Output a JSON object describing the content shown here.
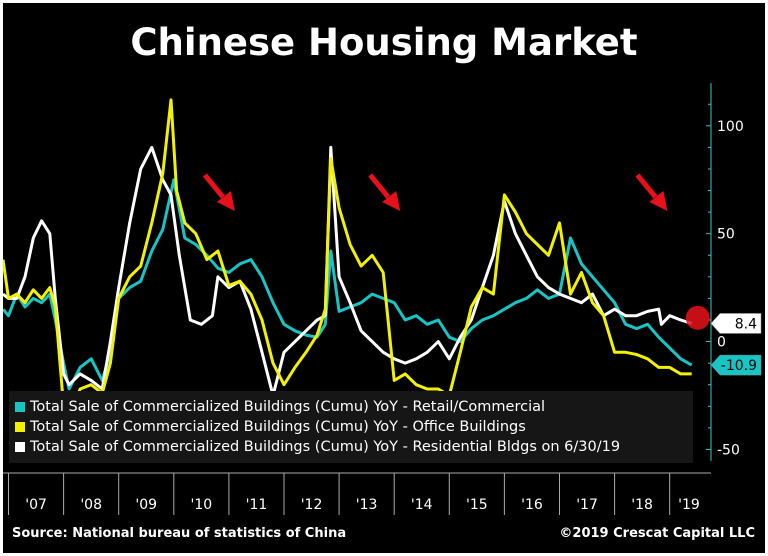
{
  "colors": {
    "retail": "#17c5c5",
    "office": "#f2f200",
    "residential": "#ffffff",
    "arrow": "#e8101a",
    "axis": "#3fc3c3",
    "background": "#000000"
  },
  "footer": {
    "source": "Source: National bureau of statistics of China",
    "copyright": "©2019 Crescat Capital LLC"
  },
  "chart_data": {
    "type": "line",
    "title": "Chinese Housing Market",
    "xlabel": "",
    "ylabel": "",
    "ylim": [
      -60,
      118
    ],
    "y_ticks": [
      100,
      50,
      0,
      -50
    ],
    "y_tick_labels": [
      "100",
      "50",
      "0",
      "-50"
    ],
    "x_categories": [
      "'07",
      "'08",
      "'09",
      "'10",
      "'11",
      "'12",
      "'13",
      "'14",
      "'15",
      "'16",
      "'17",
      "'18",
      "'19"
    ],
    "grid": false,
    "legend_position": "bottom-left",
    "annotations": {
      "arrows_at": [
        2011.0,
        2014.0,
        2018.85
      ],
      "highlight": {
        "x": 2019.4,
        "y": 11
      },
      "labels": [
        {
          "text": "8.4",
          "value": 8.4,
          "series": "Residential"
        },
        {
          "text": "-10.9",
          "value": -10.9,
          "series": "Retail/Commercial"
        }
      ]
    },
    "series": [
      {
        "name": "Total Sale of Commercialized Buildings (Cumu) YoY - Retail/Commercial",
        "color": "#17c5c5",
        "x": [
          2006.9,
          2007.0,
          2007.15,
          2007.3,
          2007.45,
          2007.6,
          2007.75,
          2007.85,
          2008.0,
          2008.1,
          2008.3,
          2008.5,
          2008.7,
          2008.85,
          2009.0,
          2009.2,
          2009.4,
          2009.6,
          2009.8,
          2010.0,
          2010.2,
          2010.4,
          2010.6,
          2010.8,
          2011.0,
          2011.2,
          2011.4,
          2011.6,
          2011.8,
          2012.0,
          2012.2,
          2012.4,
          2012.6,
          2012.75,
          2012.85,
          2013.0,
          2013.2,
          2013.4,
          2013.6,
          2013.8,
          2014.0,
          2014.2,
          2014.4,
          2014.6,
          2014.8,
          2015.0,
          2015.2,
          2015.4,
          2015.6,
          2015.8,
          2016.0,
          2016.2,
          2016.4,
          2016.6,
          2016.8,
          2017.0,
          2017.2,
          2017.4,
          2017.6,
          2017.8,
          2018.0,
          2018.2,
          2018.4,
          2018.6,
          2018.8,
          2019.0,
          2019.2,
          2019.4
        ],
        "values": [
          15,
          12,
          22,
          16,
          20,
          18,
          22,
          10,
          -10,
          -22,
          -12,
          -8,
          -18,
          -5,
          20,
          25,
          28,
          42,
          52,
          75,
          48,
          45,
          40,
          34,
          32,
          36,
          38,
          30,
          18,
          8,
          5,
          3,
          2,
          8,
          42,
          14,
          16,
          18,
          22,
          20,
          18,
          10,
          12,
          8,
          10,
          2,
          0,
          6,
          10,
          12,
          15,
          18,
          20,
          24,
          20,
          22,
          48,
          36,
          30,
          24,
          18,
          8,
          6,
          8,
          2,
          -3,
          -8,
          -10.9
        ]
      },
      {
        "name": "Total Sale of Commercialized Buildings (Cumu) YoY - Office Buildings",
        "color": "#f2f200",
        "x": [
          2006.9,
          2007.0,
          2007.15,
          2007.3,
          2007.45,
          2007.6,
          2007.75,
          2007.85,
          2008.0,
          2008.1,
          2008.3,
          2008.5,
          2008.7,
          2008.85,
          2009.0,
          2009.2,
          2009.4,
          2009.6,
          2009.8,
          2009.95,
          2010.05,
          2010.2,
          2010.4,
          2010.6,
          2010.8,
          2011.0,
          2011.2,
          2011.4,
          2011.6,
          2011.8,
          2012.0,
          2012.2,
          2012.4,
          2012.6,
          2012.75,
          2012.85,
          2013.0,
          2013.2,
          2013.4,
          2013.6,
          2013.8,
          2014.0,
          2014.2,
          2014.4,
          2014.6,
          2014.8,
          2015.0,
          2015.2,
          2015.4,
          2015.6,
          2015.8,
          2016.0,
          2016.2,
          2016.4,
          2016.6,
          2016.8,
          2017.0,
          2017.2,
          2017.4,
          2017.6,
          2017.8,
          2018.0,
          2018.2,
          2018.4,
          2018.6,
          2018.8,
          2019.0,
          2019.2,
          2019.4
        ],
        "values": [
          38,
          20,
          22,
          18,
          24,
          20,
          25,
          16,
          -30,
          -35,
          -22,
          -20,
          -24,
          -10,
          20,
          30,
          35,
          55,
          78,
          112,
          70,
          55,
          50,
          38,
          42,
          26,
          28,
          22,
          10,
          -10,
          -20,
          -12,
          -5,
          3,
          15,
          85,
          62,
          45,
          35,
          40,
          32,
          -18,
          -15,
          -20,
          -22,
          -22,
          -25,
          -5,
          16,
          25,
          22,
          68,
          60,
          50,
          45,
          40,
          55,
          22,
          32,
          18,
          12,
          -5,
          -5,
          -6,
          -8,
          -12,
          -12,
          -15,
          -15
        ]
      },
      {
        "name": "Total Sale of Commercialized Buildings (Cumu) YoY - Residential Bldgs on 6/30/19",
        "color": "#ffffff",
        "x": [
          2006.9,
          2007.0,
          2007.15,
          2007.3,
          2007.45,
          2007.6,
          2007.75,
          2007.85,
          2008.0,
          2008.1,
          2008.3,
          2008.5,
          2008.7,
          2008.85,
          2009.0,
          2009.2,
          2009.4,
          2009.6,
          2009.8,
          2009.95,
          2010.1,
          2010.3,
          2010.5,
          2010.7,
          2010.8,
          2011.0,
          2011.2,
          2011.4,
          2011.6,
          2011.8,
          2012.0,
          2012.2,
          2012.4,
          2012.6,
          2012.75,
          2012.85,
          2013.0,
          2013.2,
          2013.4,
          2013.6,
          2013.8,
          2014.0,
          2014.2,
          2014.4,
          2014.6,
          2014.8,
          2015.0,
          2015.2,
          2015.4,
          2015.6,
          2015.8,
          2016.0,
          2016.2,
          2016.4,
          2016.6,
          2016.8,
          2017.0,
          2017.2,
          2017.4,
          2017.6,
          2017.8,
          2018.0,
          2018.2,
          2018.4,
          2018.6,
          2018.8,
          2018.85,
          2019.0,
          2019.2,
          2019.4
        ],
        "values": [
          22,
          20,
          20,
          30,
          48,
          56,
          50,
          20,
          -15,
          -20,
          -15,
          -18,
          -22,
          0,
          25,
          55,
          80,
          90,
          75,
          68,
          40,
          10,
          8,
          12,
          30,
          25,
          28,
          15,
          -5,
          -25,
          -5,
          0,
          5,
          10,
          12,
          90,
          30,
          18,
          5,
          0,
          -5,
          -8,
          -10,
          -8,
          -5,
          0,
          -8,
          2,
          10,
          25,
          40,
          65,
          50,
          40,
          30,
          25,
          22,
          20,
          18,
          22,
          12,
          15,
          12,
          12,
          14,
          15,
          8,
          12,
          10,
          8.4
        ]
      }
    ]
  }
}
